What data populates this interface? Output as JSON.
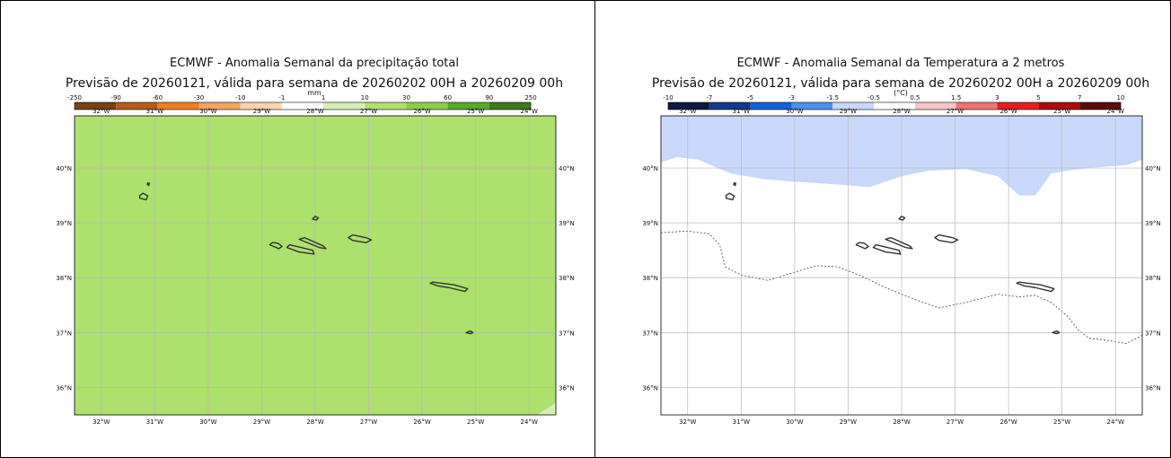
{
  "panels": [
    {
      "title": "ECMWF - Anomalia Semanal da precipitação total",
      "subtitle": "Previsão de 20260121, válida para semana de 20260202 00H a 20260209 00h",
      "colorbar": {
        "unit": "mm",
        "ticks": [
          "-250",
          "-90",
          "-60",
          "-30",
          "-10",
          "-1",
          "1",
          "10",
          "30",
          "60",
          "90",
          "250"
        ],
        "colors": [
          "#7a3f12",
          "#b65a1b",
          "#ef7d1c",
          "#f6a461",
          "#fbd3ad",
          "#ffffff",
          "#d6efb5",
          "#b0e070",
          "#8ccd47",
          "#57a82b",
          "#3d7a1c"
        ]
      },
      "map": {
        "background": "#ade06d",
        "lon_labels": [
          "32°W",
          "31°W",
          "30°W",
          "29°W",
          "28°W",
          "27°W",
          "26°W",
          "25°W",
          "24°W"
        ],
        "lat_labels": [
          "40°N",
          "39°N",
          "38°N",
          "37°N",
          "36°N"
        ]
      }
    },
    {
      "title": "ECMWF - Anomalia Semanal da Temperatura a 2 metros",
      "subtitle": "Previsão de 20260121, válida para semana de 20260202 00H a 20260209 00h",
      "colorbar": {
        "unit": "(°C)",
        "ticks": [
          "-10",
          "-7",
          "-5",
          "-3",
          "-1.5",
          "-0.5",
          "0.5",
          "1.5",
          "3",
          "5",
          "7",
          "10"
        ],
        "colors": [
          "#0b1a3d",
          "#123a8c",
          "#1560e0",
          "#4f8fef",
          "#c7d8fb",
          "#ffffff",
          "#f9c6c6",
          "#f07272",
          "#e81e1e",
          "#b00a0a",
          "#5c0a0a"
        ]
      },
      "map": {
        "background": "#ffffff",
        "anomaly_fill": "#c7d8fb",
        "lon_labels": [
          "32°W",
          "31°W",
          "30°W",
          "29°W",
          "28°W",
          "27°W",
          "26°W",
          "25°W",
          "24°W"
        ],
        "lat_labels": [
          "40°N",
          "39°N",
          "38°N",
          "37°N",
          "36°N"
        ]
      }
    }
  ]
}
